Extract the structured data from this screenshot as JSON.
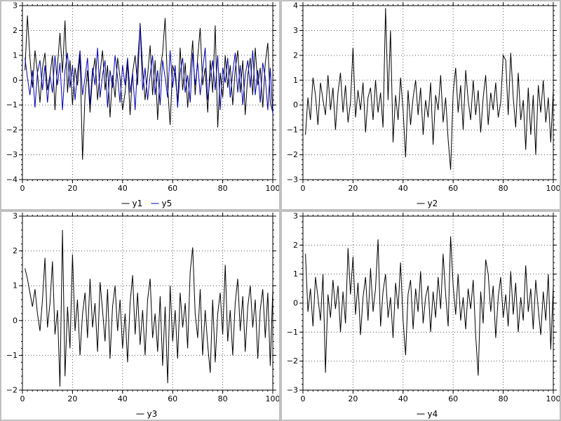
{
  "window": {
    "background_color": "#c0c0c0",
    "panel_color": "#ffffff"
  },
  "chart_data": [
    {
      "type": "line",
      "title": "",
      "xlabel": "",
      "ylabel": "",
      "xlim": [
        0,
        100
      ],
      "ylim": [
        -4,
        3
      ],
      "xticks": [
        0,
        20,
        40,
        60,
        80,
        100
      ],
      "yticks": [
        -4,
        -3,
        -2,
        -1,
        0,
        1,
        2,
        3
      ],
      "grid": true,
      "legend_position": "bottom-center",
      "legend_entries": [
        "y1",
        "y5"
      ],
      "x_start": 1,
      "x_step": 1,
      "series": [
        {
          "name": "y1",
          "color": "#000000",
          "values": [
            0.4,
            2.6,
            0.9,
            -0.3,
            1.2,
            0.3,
            -0.9,
            0.5,
            1.1,
            -0.4,
            0.2,
            1.0,
            -1.2,
            0.6,
            1.9,
            0.3,
            2.4,
            -0.5,
            0.8,
            -1.0,
            0.5,
            -0.2,
            1.0,
            -3.2,
            -0.6,
            0.4,
            -1.3,
            0.2,
            0.9,
            -0.8,
            0.3,
            1.2,
            -0.4,
            0.6,
            -1.5,
            0.2,
            -0.7,
            0.9,
            0.1,
            -1.2,
            -0.5,
            0.7,
            -1.4,
            0.3,
            1.0,
            -0.2,
            2.3,
            0.5,
            -0.8,
            0.2,
            1.4,
            -0.6,
            0.8,
            -1.6,
            0.4,
            1.1,
            2.5,
            -0.3,
            -1.8,
            0.6,
            0.2,
            -0.9,
            1.3,
            -0.4,
            0.7,
            -1.1,
            0.3,
            1.6,
            -0.6,
            0.9,
            2.1,
            -0.2,
            0.5,
            -1.3,
            0.8,
            -0.5,
            2.2,
            -1.9,
            0.3,
            -0.7,
            1.0,
            -0.3,
            0.6,
            -1.0,
            0.4,
            1.2,
            -0.5,
            0.8,
            -1.4,
            0.2,
            0.9,
            -0.6,
            1.3,
            -0.2,
            0.5,
            -1.1,
            0.7,
            1.5,
            -0.9,
            -1.3
          ]
        },
        {
          "name": "y5",
          "color": "#0000b0",
          "values": [
            0.9,
            0.1,
            -0.6,
            0.4,
            -1.1,
            0.3,
            0.8,
            -0.4,
            0.6,
            -0.9,
            0.2,
            -0.5,
            1.0,
            -0.2,
            0.7,
            -1.2,
            0.4,
            1.1,
            -0.3,
            0.6,
            -0.8,
            0.3,
            1.2,
            -0.6,
            0.1,
            0.9,
            -1.0,
            0.5,
            -0.2,
            1.3,
            -0.7,
            0.2,
            0.8,
            -1.1,
            0.4,
            -0.3,
            1.0,
            0.1,
            -0.9,
            0.6,
            -0.2,
            0.9,
            -0.5,
            0.3,
            -1.2,
            0.7,
            2.2,
            -0.4,
            0.5,
            -0.8,
            0.2,
            1.0,
            -0.6,
            0.4,
            -1.0,
            0.8,
            0.1,
            -0.7,
            1.2,
            -0.3,
            0.6,
            -1.1,
            0.3,
            0.9,
            -0.5,
            0.2,
            -0.9,
            1.1,
            -0.2,
            0.7,
            -0.6,
            0.4,
            1.3,
            -0.8,
            0.1,
            0.8,
            -0.4,
            1.0,
            -1.2,
            0.5,
            -0.1,
            0.9,
            -0.7,
            0.3,
            1.1,
            -0.5,
            0.6,
            -1.0,
            0.2,
            0.8,
            -0.3,
            1.2,
            -0.6,
            0.4,
            -0.9,
            0.7,
            0.1,
            -1.2,
            0.5,
            -1.4
          ]
        }
      ]
    },
    {
      "type": "line",
      "title": "",
      "xlabel": "",
      "ylabel": "",
      "xlim": [
        0,
        100
      ],
      "ylim": [
        -3,
        4
      ],
      "xticks": [
        0,
        20,
        40,
        60,
        80,
        100
      ],
      "yticks": [
        -3,
        -2,
        -1,
        0,
        1,
        2,
        3,
        4
      ],
      "grid": true,
      "legend_position": "bottom-center",
      "legend_entries": [
        "y2"
      ],
      "x_start": 1,
      "x_step": 1,
      "series": [
        {
          "name": "y2",
          "color": "#000000",
          "values": [
            -1.2,
            0.3,
            -0.6,
            1.1,
            0.4,
            -0.8,
            0.9,
            0.2,
            -0.4,
            1.2,
            -0.2,
            0.7,
            -1.0,
            0.5,
            1.3,
            -0.3,
            0.8,
            -0.7,
            0.1,
            2.3,
            -0.5,
            0.6,
            -0.2,
            0.9,
            -1.1,
            0.3,
            0.7,
            -0.6,
            1.0,
            -0.3,
            0.5,
            -0.9,
            3.9,
            0.2,
            3.0,
            -1.5,
            0.4,
            -0.6,
            1.1,
            -0.2,
            -2.1,
            0.6,
            -0.8,
            0.3,
            1.0,
            -0.4,
            0.7,
            -1.2,
            0.2,
            -0.5,
            0.9,
            -1.6,
            0.4,
            -0.2,
            1.2,
            -0.7,
            0.3,
            -1.4,
            -2.6,
            0.5,
            1.5,
            -0.3,
            0.8,
            -1.0,
            1.4,
            0.2,
            -0.6,
            1.0,
            -0.4,
            0.6,
            -1.1,
            0.3,
            1.2,
            -0.8,
            0.5,
            -0.2,
            0.9,
            -0.5,
            0.1,
            2.0,
            1.8,
            -0.4,
            2.1,
            0.3,
            -0.9,
            1.3,
            -0.6,
            0.2,
            -1.8,
            0.7,
            -1.2,
            0.4,
            -2.0,
            0.8,
            -0.3,
            1.0,
            -0.7,
            0.3,
            -1.5,
            0.6
          ]
        }
      ]
    },
    {
      "type": "line",
      "title": "",
      "xlabel": "",
      "ylabel": "",
      "xlim": [
        0,
        100
      ],
      "ylim": [
        -2,
        3
      ],
      "xticks": [
        0,
        20,
        40,
        60,
        80,
        100
      ],
      "yticks": [
        -2,
        -1,
        0,
        1,
        2,
        3
      ],
      "grid": true,
      "legend_position": "bottom-center",
      "legend_entries": [
        "y3"
      ],
      "x_start": 1,
      "x_step": 1,
      "series": [
        {
          "name": "y3",
          "color": "#000000",
          "values": [
            1.5,
            1.2,
            0.8,
            0.4,
            0.9,
            0.2,
            -0.3,
            0.6,
            1.8,
            -0.2,
            0.5,
            1.7,
            -0.4,
            0.3,
            -1.9,
            2.6,
            -1.6,
            0.4,
            -0.8,
            1.9,
            -0.3,
            0.6,
            -1.0,
            0.2,
            0.8,
            -0.5,
            1.2,
            -0.2,
            0.5,
            -0.9,
            1.1,
            0.3,
            -0.6,
            0.9,
            -1.1,
            0.4,
            1.0,
            -0.3,
            0.6,
            -0.8,
            0.2,
            -1.2,
            0.5,
            1.3,
            -0.4,
            0.8,
            -0.7,
            0.3,
            -1.0,
            0.6,
            1.2,
            -0.5,
            0.2,
            -0.9,
            0.7,
            -1.3,
            0.4,
            -1.8,
            1.0,
            -0.6,
            0.3,
            -1.1,
            0.8,
            -0.2,
            0.5,
            -0.8,
            1.4,
            2.1,
            0.2,
            -0.5,
            0.9,
            -1.0,
            0.3,
            -0.7,
            -1.5,
            0.6,
            -1.2,
            0.2,
            0.8,
            -0.4,
            1.6,
            -0.6,
            0.3,
            -1.0,
            0.5,
            1.2,
            -0.3,
            0.7,
            -0.9,
            0.4,
            1.0,
            -0.2,
            0.6,
            -1.1,
            0.3,
            0.9,
            -0.5,
            0.8,
            -1.3,
            0.9
          ]
        }
      ]
    },
    {
      "type": "line",
      "title": "",
      "xlabel": "",
      "ylabel": "",
      "xlim": [
        0,
        100
      ],
      "ylim": [
        -3,
        3
      ],
      "xticks": [
        0,
        20,
        40,
        60,
        80,
        100
      ],
      "yticks": [
        -3,
        -2,
        -1,
        0,
        1,
        2,
        3
      ],
      "grid": true,
      "legend_position": "bottom-center",
      "legend_entries": [
        "y4"
      ],
      "x_start": 1,
      "x_step": 1,
      "series": [
        {
          "name": "y4",
          "color": "#000000",
          "values": [
            1.7,
            -0.3,
            0.5,
            -0.8,
            0.9,
            0.2,
            -0.6,
            1.0,
            -2.4,
            0.3,
            -0.5,
            0.8,
            -0.2,
            0.6,
            -1.0,
            0.4,
            -0.7,
            1.9,
            0.3,
            1.6,
            -0.4,
            0.7,
            -1.1,
            0.2,
            0.9,
            -0.6,
            1.2,
            -0.3,
            0.5,
            2.2,
            -0.8,
            0.4,
            1.0,
            -0.5,
            0.2,
            -1.2,
            0.7,
            -0.2,
            1.4,
            -0.6,
            -1.8,
            0.3,
            0.8,
            -0.9,
            0.5,
            -0.3,
            1.1,
            -0.7,
            0.2,
            0.6,
            -1.0,
            0.4,
            -0.5,
            0.9,
            -0.2,
            1.7,
            0.3,
            -0.8,
            2.3,
            0.6,
            -0.4,
            1.0,
            -0.6,
            0.2,
            -0.9,
            0.5,
            -0.2,
            0.8,
            -1.1,
            -2.5,
            0.4,
            -0.7,
            1.5,
            1.0,
            -0.3,
            0.6,
            -1.2,
            0.2,
            0.9,
            -0.5,
            0.3,
            -0.8,
            1.1,
            -0.4,
            0.7,
            -1.0,
            0.2,
            -0.6,
            1.3,
            -0.3,
            0.5,
            -0.9,
            0.8,
            -0.2,
            -1.1,
            0.4,
            -0.6,
            1.0,
            -1.6,
            0.6
          ]
        }
      ]
    }
  ]
}
